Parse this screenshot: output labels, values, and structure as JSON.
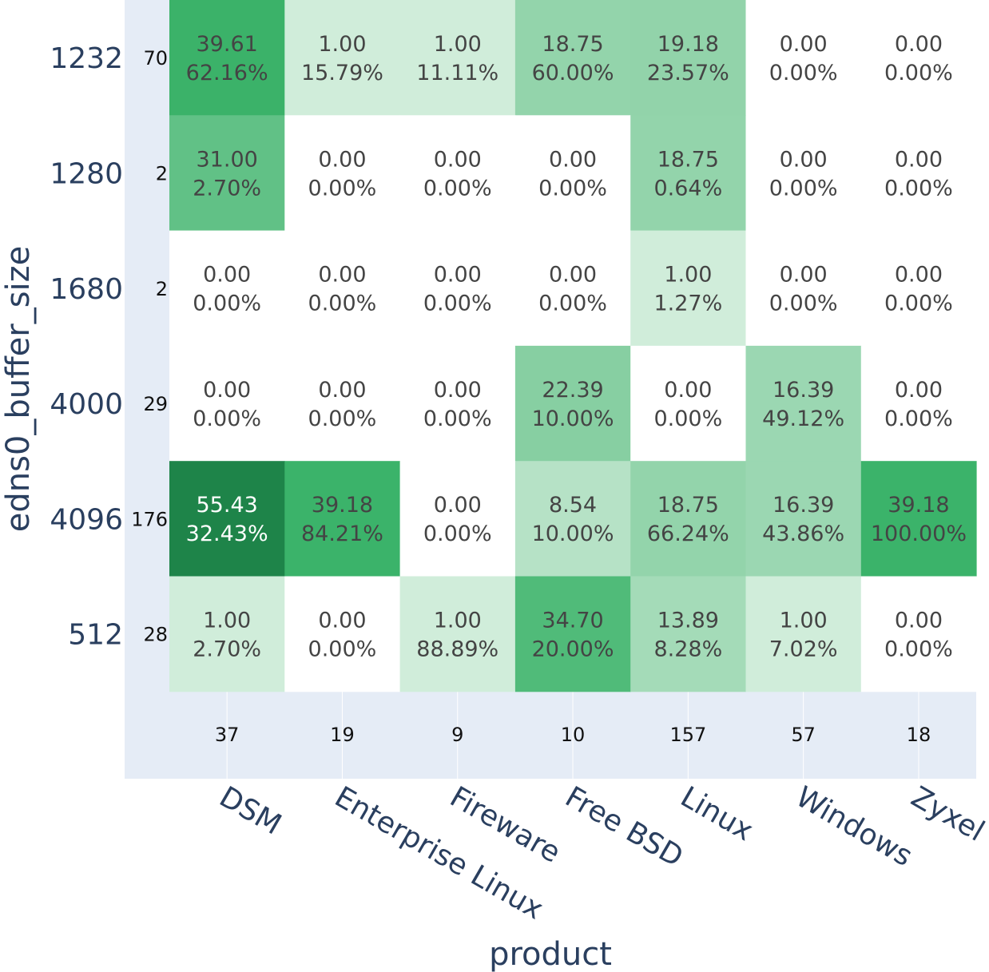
{
  "chart_data": {
    "type": "heatmap",
    "xlabel": "product",
    "ylabel": "edns0_buffer_size",
    "x_categories": [
      "DSM",
      "Enterprise Linux",
      "Fireware",
      "Free BSD",
      "Linux",
      "Windows",
      "Zyxel"
    ],
    "y_categories": [
      "1232",
      "1280",
      "1680",
      "4000",
      "4096",
      "512"
    ],
    "row_totals": [
      "70",
      "2",
      "2",
      "29",
      "176",
      "28"
    ],
    "column_totals": [
      "37",
      "19",
      "9",
      "10",
      "157",
      "57",
      "18"
    ],
    "values": [
      [
        39.61,
        1.0,
        1.0,
        18.75,
        19.18,
        0.0,
        0.0
      ],
      [
        31.0,
        0.0,
        0.0,
        0.0,
        18.75,
        0.0,
        0.0
      ],
      [
        0.0,
        0.0,
        0.0,
        0.0,
        1.0,
        0.0,
        0.0
      ],
      [
        0.0,
        0.0,
        0.0,
        22.39,
        0.0,
        16.39,
        0.0
      ],
      [
        55.43,
        39.18,
        0.0,
        8.54,
        18.75,
        16.39,
        39.18
      ],
      [
        1.0,
        0.0,
        1.0,
        34.7,
        13.89,
        1.0,
        0.0
      ]
    ],
    "percentages": [
      [
        "62.16%",
        "15.79%",
        "11.11%",
        "60.00%",
        "23.57%",
        "0.00%",
        "0.00%"
      ],
      [
        "2.70%",
        "0.00%",
        "0.00%",
        "0.00%",
        "0.64%",
        "0.00%",
        "0.00%"
      ],
      [
        "0.00%",
        "0.00%",
        "0.00%",
        "0.00%",
        "1.27%",
        "0.00%",
        "0.00%"
      ],
      [
        "0.00%",
        "0.00%",
        "0.00%",
        "10.00%",
        "0.00%",
        "49.12%",
        "0.00%"
      ],
      [
        "32.43%",
        "84.21%",
        "0.00%",
        "10.00%",
        "66.24%",
        "43.86%",
        "100.00%"
      ],
      [
        "2.70%",
        "0.00%",
        "88.89%",
        "20.00%",
        "8.28%",
        "7.02%",
        "0.00%"
      ]
    ],
    "colorscale": "Greens",
    "colors": {
      "zero": "#ffffff",
      "low": "#d3eedd",
      "max": "#1e8449",
      "text_dark": "#444444",
      "text_light": "#ffffff",
      "background": "#e5ecf6",
      "axis_text": "#2a3f5f"
    }
  }
}
